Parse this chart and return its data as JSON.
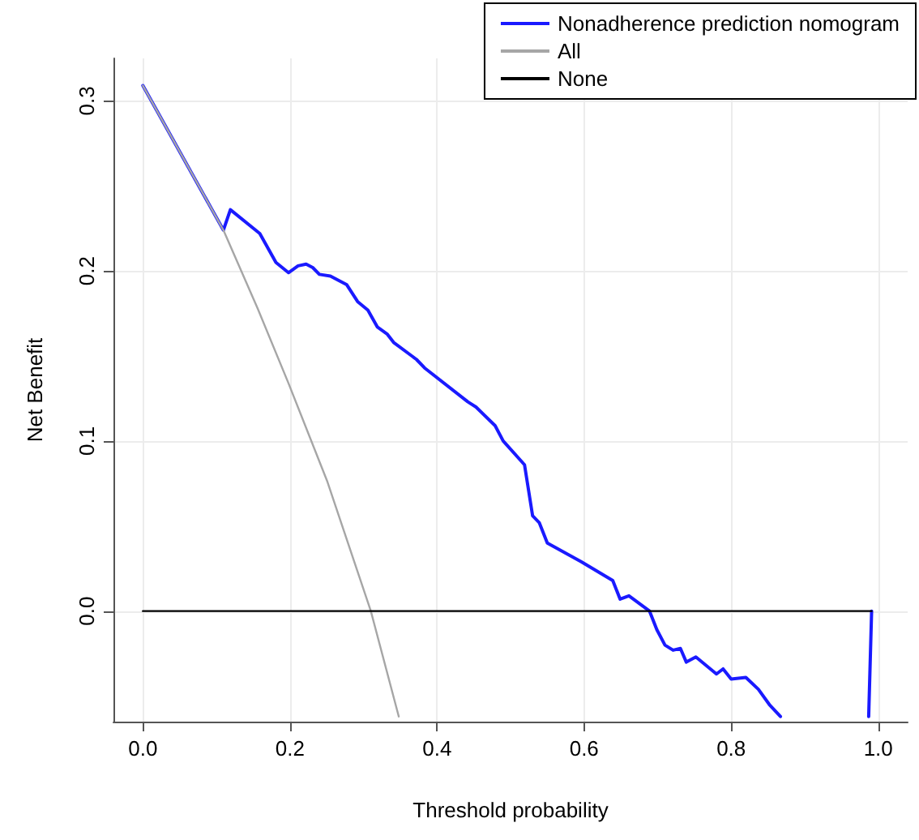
{
  "chart_data": {
    "type": "line",
    "xlabel": "Threshold probability",
    "ylabel": "Net Benefit",
    "xlim": [
      -0.04,
      1.04
    ],
    "ylim": [
      -0.065,
      0.325
    ],
    "xticks": [
      {
        "value": 0,
        "label": "0.0"
      },
      {
        "value": 0.2,
        "label": "0.2"
      },
      {
        "value": 0.4,
        "label": "0.4"
      },
      {
        "value": 0.6,
        "label": "0.6"
      },
      {
        "value": 0.8,
        "label": "0.8"
      },
      {
        "value": 1,
        "label": "1.0"
      }
    ],
    "yticks": [
      {
        "value": 0,
        "label": "0.0"
      },
      {
        "value": 0.1,
        "label": "0.1"
      },
      {
        "value": 0.2,
        "label": "0.2"
      },
      {
        "value": 0.3,
        "label": "0.3"
      }
    ],
    "grid": true,
    "legend": "top right",
    "marker": "none",
    "line_style": "solid",
    "series": [
      {
        "name": "Nonadherence prediction nomogram",
        "color": "#1a1aff",
        "x": [
          0,
          0.1095,
          0.119,
          0.159,
          0.181,
          0.198,
          0.211,
          0.222,
          0.231,
          0.24,
          0.255,
          0.277,
          0.292,
          0.306,
          0.319,
          0.332,
          0.341,
          0.372,
          0.383,
          0.442,
          0.453,
          0.479,
          0.49,
          0.519,
          0.53,
          0.539,
          0.55,
          0.596,
          0.639,
          0.649,
          0.661,
          0.689,
          0.699,
          0.71,
          0.721,
          0.731,
          0.739,
          0.752,
          0.78,
          0.789,
          0.8,
          0.82,
          0.837,
          0.852,
          0.867,
          0.93,
          0.987,
          0.991
        ],
        "values": [
          0.309,
          0.224,
          0.236,
          0.222,
          0.205,
          0.199,
          0.203,
          0.204,
          0.202,
          0.198,
          0.197,
          0.192,
          0.182,
          0.177,
          0.167,
          0.163,
          0.158,
          0.148,
          0.143,
          0.123,
          0.12,
          0.109,
          0.1,
          0.086,
          0.056,
          0.052,
          0.04,
          0.029,
          0.018,
          0.007,
          0.009,
          0,
          -0.011,
          -0.02,
          -0.023,
          -0.022,
          -0.03,
          -0.027,
          -0.037,
          -0.034,
          -0.04,
          -0.039,
          -0.046,
          -0.055,
          -0.062,
          null,
          -0.062,
          0
        ]
      },
      {
        "name": "All",
        "color": "#a6a6a6",
        "x": [
          0,
          0.1095,
          0.156,
          0.198,
          0.251,
          0.31,
          0.348
        ],
        "values": [
          0.309,
          0.224,
          0.178,
          0.134,
          0.076,
          0,
          -0.062
        ]
      },
      {
        "name": "None",
        "color": "#000000",
        "x": [
          0,
          0.991
        ],
        "values": [
          0,
          0
        ]
      }
    ]
  }
}
